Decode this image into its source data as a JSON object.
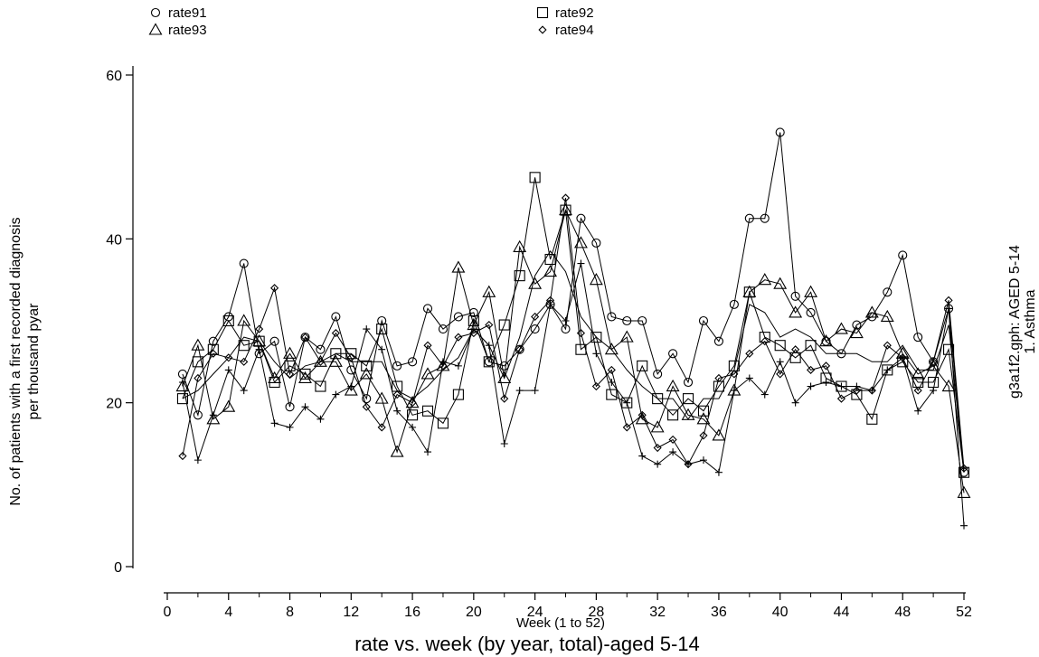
{
  "chart_data": {
    "type": "line",
    "title": "rate vs. week (by year, total)-aged 5-14",
    "xlabel": "Week (1 to 52)",
    "ylabel_lines": [
      "No. of patients with a first recorded diagnosis",
      "per thousand pyar"
    ],
    "right_note_lines": [
      "g3a1f2.gph: AGED 5-14",
      "1.  Asthma"
    ],
    "xlim": [
      0,
      52
    ],
    "ylim": [
      0,
      60
    ],
    "xticks": [
      0,
      4,
      8,
      12,
      16,
      20,
      24,
      28,
      32,
      36,
      40,
      44,
      48,
      52
    ],
    "yticks": [
      0,
      20,
      40,
      60
    ],
    "legend_placement": "top",
    "series": [
      {
        "name": "rate91",
        "marker": "circle",
        "x": [
          1,
          2,
          3,
          4,
          5,
          6,
          7,
          8,
          9,
          10,
          11,
          12,
          13,
          14,
          15,
          16,
          17,
          18,
          19,
          20,
          21,
          22,
          23,
          24,
          25,
          26,
          27,
          28,
          29,
          30,
          31,
          32,
          33,
          34,
          35,
          36,
          37,
          38,
          39,
          40,
          41,
          42,
          43,
          44,
          45,
          46,
          47,
          48,
          49,
          50,
          51,
          52
        ],
        "values": [
          23.5,
          18.5,
          27.5,
          30.5,
          37,
          26,
          27.5,
          19.5,
          28,
          26.5,
          30.5,
          24,
          20.5,
          30,
          24.5,
          25,
          31.5,
          29,
          30.5,
          31,
          25,
          24.5,
          26.5,
          29,
          32,
          29,
          42.5,
          39.5,
          30.5,
          30,
          30,
          23.5,
          26,
          22.5,
          30,
          27.5,
          32,
          42.5,
          42.5,
          53,
          33,
          31,
          27.5,
          26,
          29.5,
          30.5,
          33.5,
          38,
          28,
          25,
          31.5,
          11.5
        ]
      },
      {
        "name": "rate92",
        "marker": "square",
        "x": [
          1,
          2,
          3,
          4,
          5,
          6,
          7,
          8,
          9,
          10,
          11,
          12,
          13,
          14,
          15,
          16,
          17,
          18,
          19,
          20,
          21,
          22,
          23,
          24,
          25,
          26,
          27,
          28,
          29,
          30,
          31,
          32,
          33,
          34,
          35,
          36,
          37,
          38,
          39,
          40,
          41,
          42,
          43,
          44,
          45,
          46,
          47,
          48,
          49,
          50,
          51,
          52
        ],
        "values": [
          20.5,
          25,
          26.5,
          30,
          27,
          27.5,
          22.5,
          24.5,
          23.5,
          22,
          26,
          26,
          24.5,
          29,
          22,
          18.5,
          19,
          17.5,
          21,
          30,
          25,
          29.5,
          35.5,
          47.5,
          37.5,
          43.5,
          26.5,
          28,
          21,
          20,
          24.5,
          20.5,
          18.5,
          20.5,
          19,
          22,
          24.5,
          33.5,
          28,
          27,
          25.5,
          27,
          23,
          22,
          21,
          18,
          24,
          25,
          22.5,
          22.5,
          26.5,
          11.5
        ]
      },
      {
        "name": "rate93",
        "marker": "triangle",
        "x": [
          1,
          2,
          3,
          4,
          5,
          6,
          7,
          8,
          9,
          10,
          11,
          12,
          13,
          14,
          15,
          16,
          17,
          18,
          19,
          20,
          21,
          22,
          23,
          24,
          25,
          26,
          27,
          28,
          29,
          30,
          31,
          32,
          33,
          34,
          35,
          36,
          37,
          38,
          39,
          40,
          41,
          42,
          43,
          44,
          45,
          46,
          47,
          48,
          49,
          50,
          51,
          52
        ],
        "values": [
          22,
          27,
          18,
          19.5,
          30,
          27.5,
          23,
          26,
          23,
          25,
          25,
          21.5,
          23.5,
          20.5,
          14,
          20,
          23.5,
          24.5,
          36.5,
          29.5,
          33.5,
          23,
          39,
          34.5,
          36,
          43.5,
          39.5,
          35,
          26.5,
          28,
          18,
          17,
          22,
          18.5,
          18,
          16,
          21.5,
          33.5,
          35,
          34.5,
          31,
          33.5,
          27.5,
          29,
          28.5,
          31,
          30.5,
          26,
          23.5,
          24.5,
          22,
          9
        ]
      },
      {
        "name": "rate94",
        "marker": "diamond",
        "x": [
          1,
          2,
          3,
          4,
          5,
          6,
          7,
          8,
          9,
          10,
          11,
          12,
          13,
          14,
          15,
          16,
          17,
          18,
          19,
          20,
          21,
          22,
          23,
          24,
          25,
          26,
          27,
          28,
          29,
          30,
          31,
          32,
          33,
          34,
          35,
          36,
          37,
          38,
          39,
          40,
          41,
          42,
          43,
          44,
          45,
          46,
          47,
          48,
          49,
          50,
          51,
          52
        ],
        "values": [
          13.5,
          23,
          26,
          25.5,
          25,
          29,
          34,
          23.5,
          28,
          25,
          28.5,
          25.5,
          19.5,
          17,
          21,
          20,
          27,
          24.5,
          28,
          28.5,
          29.5,
          20.5,
          26.5,
          30.5,
          32.5,
          45,
          28.5,
          22,
          24,
          17,
          18.5,
          14.5,
          15.5,
          12.5,
          16,
          23,
          23.5,
          26,
          27.5,
          23.5,
          26.5,
          24,
          24.5,
          20.5,
          21.5,
          21.5,
          27,
          25.5,
          21.5,
          25,
          32.5,
          12
        ]
      },
      {
        "name": "",
        "marker": "plus",
        "x": [
          1,
          2,
          3,
          4,
          5,
          6,
          7,
          8,
          9,
          10,
          11,
          12,
          13,
          14,
          15,
          16,
          17,
          18,
          19,
          20,
          21,
          22,
          23,
          24,
          25,
          26,
          27,
          28,
          29,
          30,
          31,
          32,
          33,
          34,
          35,
          36,
          37,
          38,
          39,
          40,
          41,
          42,
          43,
          44,
          45,
          46,
          47,
          48,
          49,
          50,
          51,
          52
        ],
        "values": [
          22.5,
          13,
          18.5,
          24,
          21.5,
          26.5,
          17.5,
          17,
          19.5,
          18,
          21,
          22,
          29,
          26.5,
          19,
          17,
          14,
          25,
          24.5,
          29,
          27,
          15,
          21.5,
          21.5,
          32,
          30,
          37,
          26,
          22.5,
          20,
          13.5,
          12.5,
          14,
          12.5,
          13,
          11.5,
          21.5,
          23,
          21,
          25,
          20,
          22,
          22.5,
          22,
          22,
          21.5,
          24,
          25.5,
          19,
          21.5,
          31.5,
          5
        ]
      },
      {
        "name": "",
        "marker": "none",
        "x": [
          1,
          2,
          3,
          4,
          5,
          6,
          7,
          8,
          9,
          10,
          11,
          12,
          13,
          14,
          15,
          16,
          17,
          18,
          19,
          20,
          21,
          22,
          23,
          24,
          25,
          26,
          27,
          28,
          29,
          30,
          31,
          32,
          33,
          34,
          35,
          36,
          37,
          38,
          39,
          40,
          41,
          42,
          43,
          44,
          45,
          46,
          47,
          48,
          49,
          50,
          51,
          52
        ],
        "values": [
          20.5,
          21.5,
          23.5,
          25.5,
          28,
          27.5,
          25,
          23,
          24.5,
          25,
          26,
          25,
          25,
          25,
          21.5,
          20.5,
          22,
          24,
          25.5,
          29,
          27,
          23,
          28,
          35.5,
          38.5,
          36,
          30.5,
          28,
          26.5,
          24,
          22,
          20.5,
          20.5,
          18,
          20.5,
          20.5,
          24,
          32,
          31,
          28,
          29,
          28,
          26,
          26,
          26,
          25,
          25,
          27,
          24,
          24,
          29.5,
          11.5
        ]
      }
    ]
  }
}
